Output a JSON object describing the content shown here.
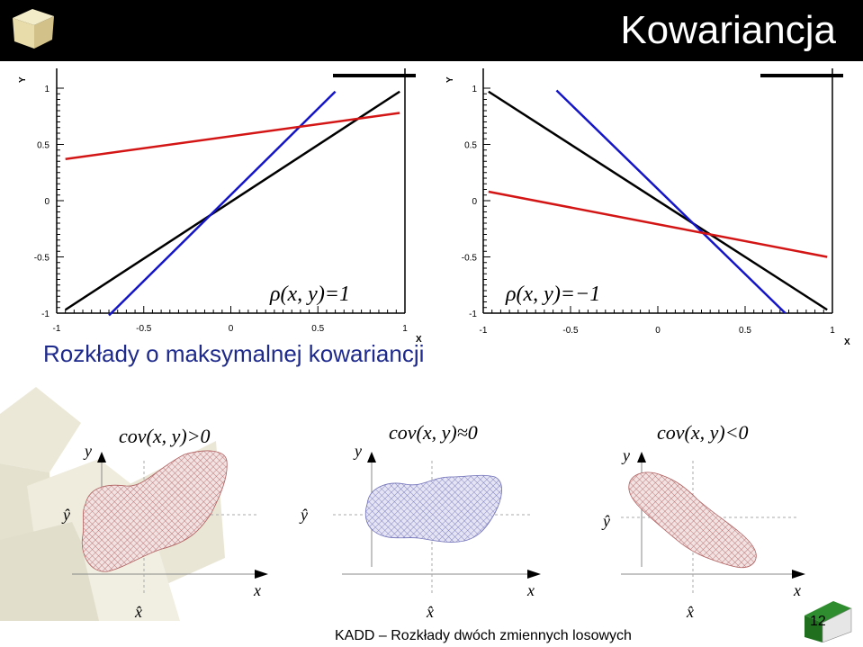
{
  "header": {
    "title": "Kowariancja"
  },
  "top_plots": {
    "x_ticks": [
      "-1",
      "-0.5",
      "0",
      "0.5",
      "1"
    ],
    "y_ticks": [
      "1",
      "0.5",
      "0",
      "-0.5",
      "-1"
    ],
    "x_axis_label": "X",
    "y_axis_label": "Y"
  },
  "chart_data": [
    {
      "type": "line",
      "xlim": [
        -1,
        1
      ],
      "ylim": [
        -1,
        1
      ],
      "annotation": "ρ(x, y)=1",
      "series": [
        {
          "color": "#000000",
          "x": [
            -0.95,
            0.97
          ],
          "y": [
            -0.97,
            0.97
          ]
        },
        {
          "color": "#1515c8",
          "x": [
            -0.7,
            0.6
          ],
          "y": [
            -1.02,
            0.97
          ]
        },
        {
          "color": "#d41515",
          "x": [
            -0.95,
            0.97
          ],
          "y": [
            0.37,
            0.78
          ]
        }
      ]
    },
    {
      "type": "line",
      "xlim": [
        -1,
        1
      ],
      "ylim": [
        -1,
        1
      ],
      "annotation": "ρ(x, y)=−1",
      "series": [
        {
          "color": "#000000",
          "x": [
            -0.97,
            0.97
          ],
          "y": [
            0.97,
            -0.97
          ]
        },
        {
          "color": "#1515c8",
          "x": [
            -0.58,
            0.73
          ],
          "y": [
            0.98,
            -1.0
          ]
        },
        {
          "color": "#d41515",
          "x": [
            -0.97,
            0.97
          ],
          "y": [
            0.08,
            -0.5
          ]
        }
      ]
    }
  ],
  "subtitle": "Rozkłady o maksymalnej kowariancji",
  "bottom_panels": [
    {
      "cov_label": "cov(x, y)>0",
      "y_label": "y",
      "x_label": "x",
      "y_hat": "ŷ",
      "x_hat": "x̂"
    },
    {
      "cov_label": "cov(x, y)≈0",
      "y_label": "y",
      "x_label": "x",
      "y_hat": "ŷ",
      "x_hat": "x̂"
    },
    {
      "cov_label": "cov(x, y)<0",
      "y_label": "y",
      "x_label": "x",
      "y_hat": "ŷ",
      "x_hat": "x̂"
    }
  ],
  "footer": "KADD – Rozkłady dwóch zmiennych losowych",
  "page_number": "12",
  "colors": {
    "header_bg": "#000000",
    "subtitle": "#1e2a8c",
    "blob_red": "#b06060",
    "blob_blue": "#7070b8"
  }
}
